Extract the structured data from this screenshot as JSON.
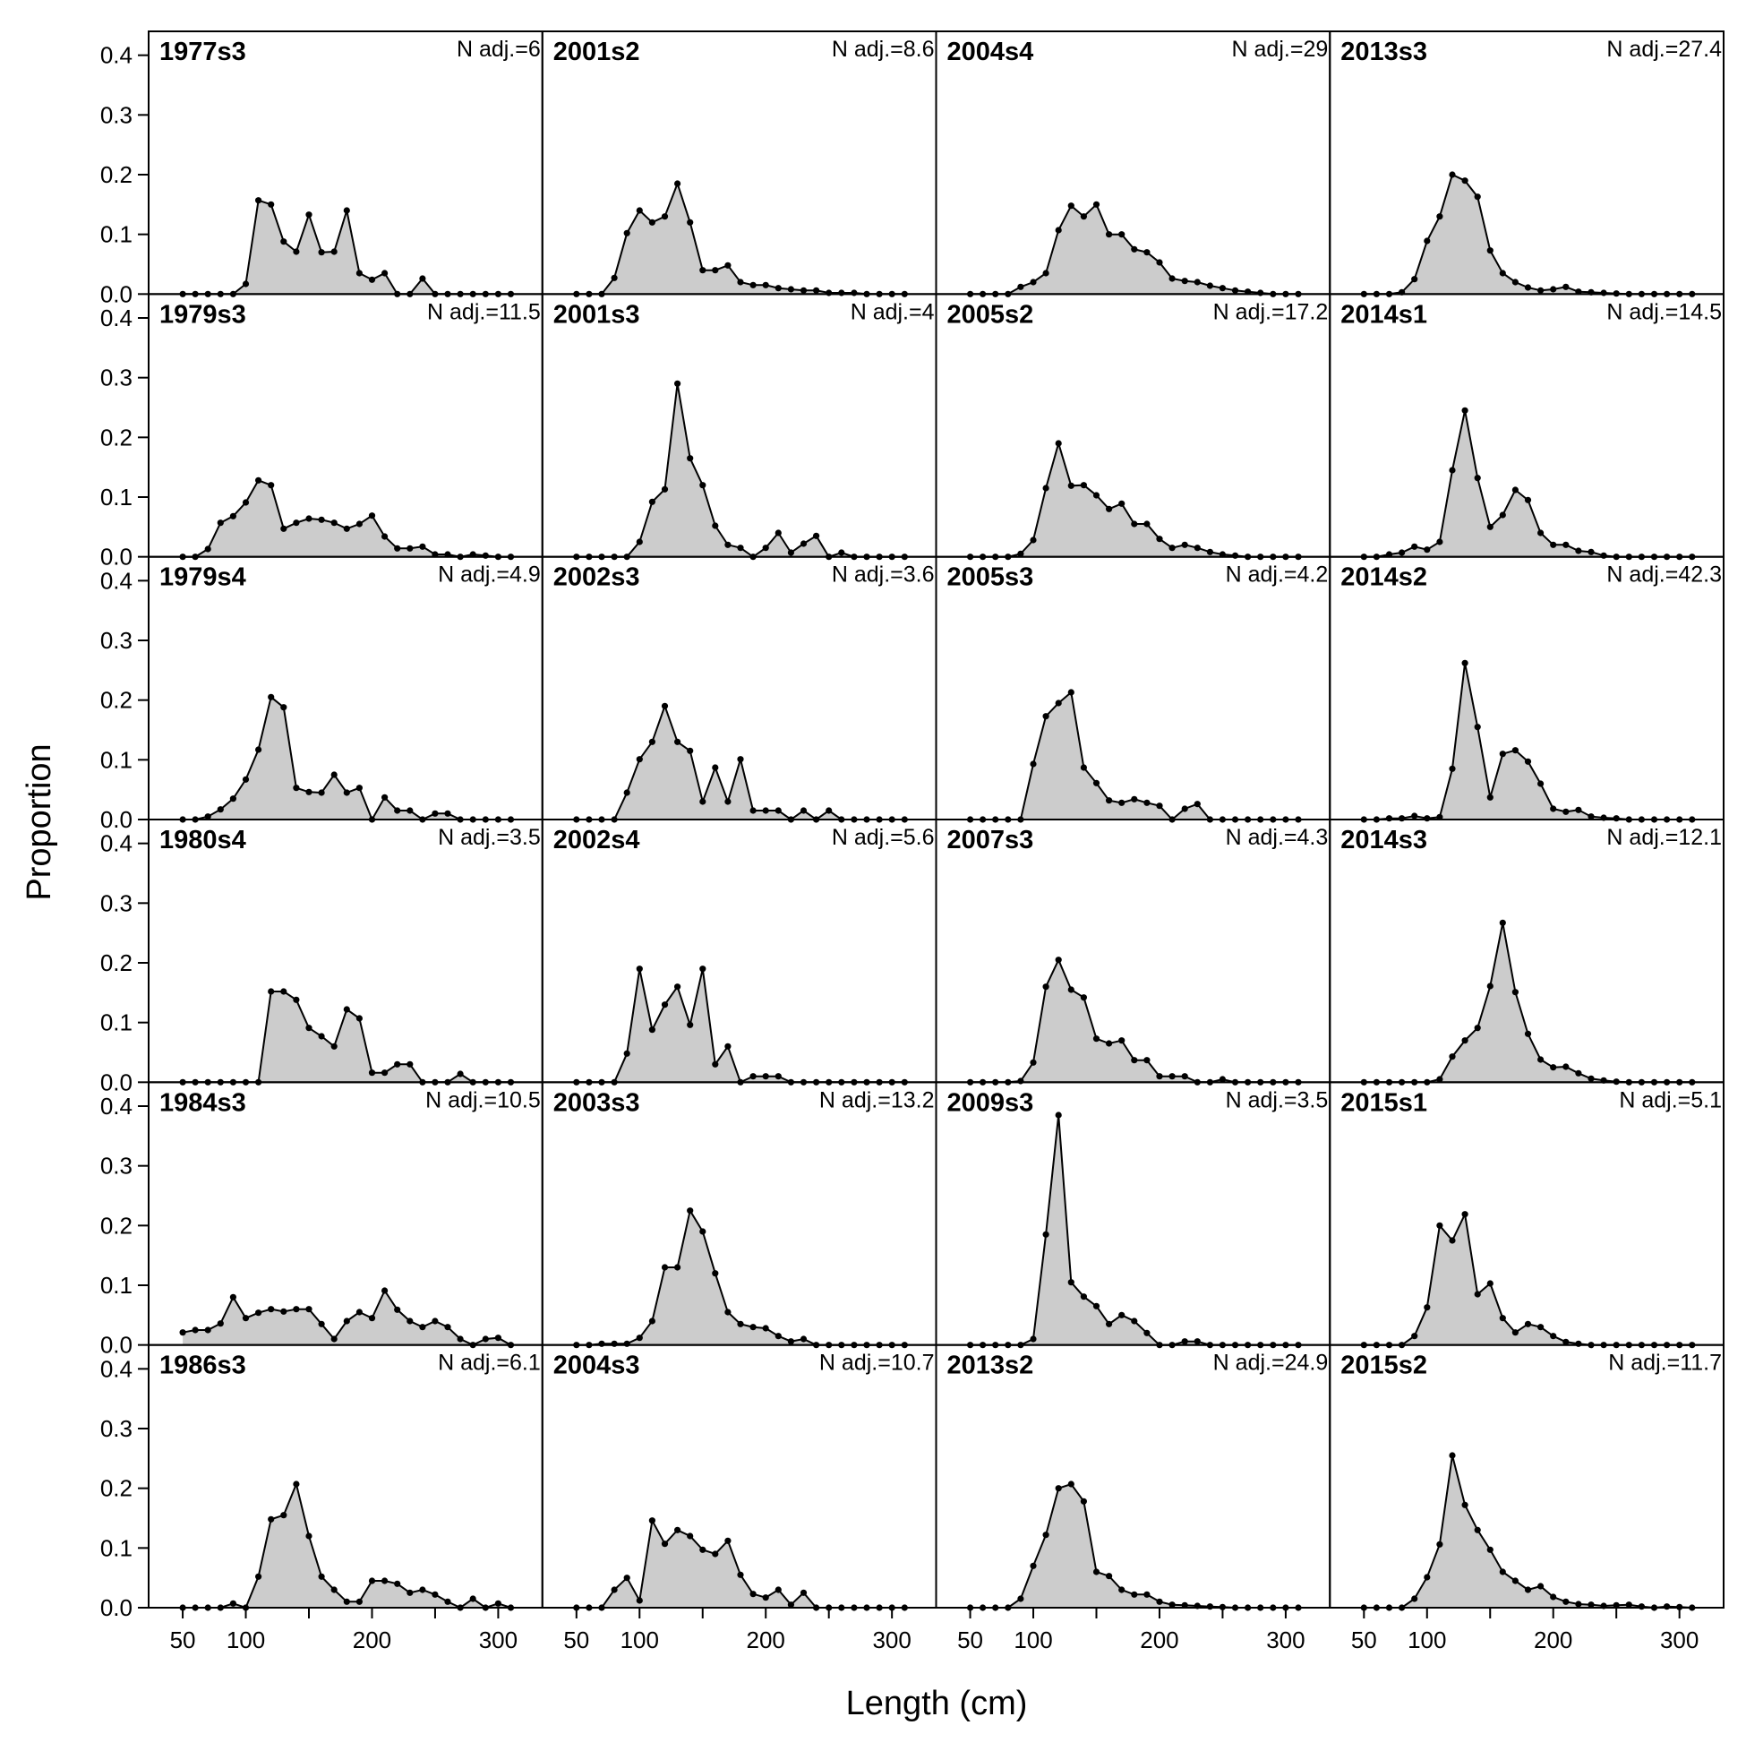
{
  "figure": {
    "ylabel": "Proportion",
    "xlabel": "Length (cm)"
  },
  "chart_data": {
    "type": "area",
    "layout": {
      "columns": 4,
      "rows": 6,
      "order": "column-major"
    },
    "x_axis": {
      "label": "Length (cm)",
      "lim": [
        23,
        335
      ],
      "ticks": [
        50,
        100,
        150,
        200,
        250,
        300
      ],
      "tick_labels": [
        "50",
        "100",
        "",
        "200",
        "",
        "300"
      ]
    },
    "y_axis": {
      "label": "Proportion",
      "lim": [
        0,
        0.44
      ],
      "ticks": [
        0.0,
        0.1,
        0.2,
        0.3,
        0.4
      ],
      "tick_labels": [
        "0.0",
        "0.1",
        "0.2",
        "0.3",
        "0.4"
      ]
    },
    "x": [
      50,
      60,
      70,
      80,
      90,
      100,
      110,
      120,
      130,
      140,
      150,
      160,
      170,
      180,
      190,
      200,
      210,
      220,
      230,
      240,
      250,
      260,
      270,
      280,
      290,
      300,
      310
    ],
    "fill_color": "#cccccc",
    "line_color": "#000000",
    "panels": [
      {
        "label": "1977s3",
        "nadj": "N adj.=6",
        "values": [
          0,
          0,
          0,
          0,
          0,
          0.017,
          0.157,
          0.15,
          0.088,
          0.071,
          0.133,
          0.07,
          0.071,
          0.14,
          0.035,
          0.024,
          0.035,
          0,
          0,
          0.026,
          0,
          0,
          0,
          0,
          0,
          0,
          0
        ]
      },
      {
        "label": "1979s3",
        "nadj": "N adj.=11.5",
        "values": [
          0,
          0,
          0.013,
          0.057,
          0.068,
          0.091,
          0.128,
          0.12,
          0.047,
          0.057,
          0.064,
          0.062,
          0.057,
          0.047,
          0.055,
          0.069,
          0.034,
          0.014,
          0.014,
          0.017,
          0.004,
          0.004,
          0,
          0.004,
          0.002,
          0,
          0
        ]
      },
      {
        "label": "1979s4",
        "nadj": "N adj.=4.9",
        "values": [
          0,
          0,
          0.005,
          0.017,
          0.035,
          0.067,
          0.117,
          0.205,
          0.188,
          0.053,
          0.046,
          0.045,
          0.075,
          0.045,
          0.053,
          0,
          0.037,
          0.015,
          0.015,
          0,
          0.01,
          0.01,
          0,
          0,
          0,
          0,
          0
        ]
      },
      {
        "label": "1980s4",
        "nadj": "N adj.=3.5",
        "values": [
          0,
          0,
          0,
          0,
          0,
          0,
          0,
          0.152,
          0.152,
          0.138,
          0.091,
          0.077,
          0.06,
          0.122,
          0.107,
          0.016,
          0.016,
          0.03,
          0.03,
          0,
          0,
          0,
          0.014,
          0,
          0,
          0,
          0
        ]
      },
      {
        "label": "1984s3",
        "nadj": "N adj.=10.5",
        "values": [
          0.021,
          0.025,
          0.025,
          0.036,
          0.08,
          0.045,
          0.054,
          0.06,
          0.056,
          0.06,
          0.06,
          0.035,
          0.01,
          0.04,
          0.055,
          0.045,
          0.091,
          0.059,
          0.04,
          0.03,
          0.04,
          0.03,
          0.01,
          0,
          0.01,
          0.012,
          0
        ]
      },
      {
        "label": "1986s3",
        "nadj": "N adj.=6.1",
        "values": [
          0,
          0,
          0,
          0,
          0.007,
          0,
          0.052,
          0.148,
          0.155,
          0.207,
          0.12,
          0.052,
          0.03,
          0.01,
          0.01,
          0.045,
          0.045,
          0.04,
          0.025,
          0.03,
          0.022,
          0.01,
          0,
          0.015,
          0,
          0.007,
          0
        ]
      },
      {
        "label": "2001s2",
        "nadj": "N adj.=8.6",
        "values": [
          0,
          0,
          0,
          0.027,
          0.102,
          0.14,
          0.12,
          0.13,
          0.185,
          0.12,
          0.04,
          0.04,
          0.048,
          0.02,
          0.015,
          0.015,
          0.01,
          0.008,
          0.006,
          0.006,
          0.002,
          0.002,
          0.002,
          0,
          0,
          0,
          0
        ]
      },
      {
        "label": "2001s3",
        "nadj": "N adj.=4",
        "values": [
          0,
          0,
          0,
          0,
          0,
          0.025,
          0.092,
          0.113,
          0.29,
          0.165,
          0.12,
          0.052,
          0.02,
          0.015,
          0,
          0.015,
          0.04,
          0.007,
          0.022,
          0.035,
          0,
          0.007,
          0,
          0,
          0,
          0,
          0
        ]
      },
      {
        "label": "2002s3",
        "nadj": "N adj.=3.6",
        "values": [
          0,
          0,
          0,
          0,
          0.045,
          0.101,
          0.13,
          0.19,
          0.13,
          0.115,
          0.03,
          0.087,
          0.03,
          0.101,
          0.015,
          0.015,
          0.015,
          0,
          0.015,
          0,
          0.015,
          0,
          0,
          0,
          0,
          0,
          0
        ]
      },
      {
        "label": "2002s4",
        "nadj": "N adj.=5.6",
        "values": [
          0,
          0,
          0,
          0,
          0.048,
          0.19,
          0.088,
          0.13,
          0.16,
          0.096,
          0.19,
          0.03,
          0.06,
          0,
          0.01,
          0.01,
          0.01,
          0,
          0,
          0,
          0,
          0,
          0,
          0,
          0,
          0,
          0
        ]
      },
      {
        "label": "2003s3",
        "nadj": "N adj.=13.2",
        "values": [
          0,
          0,
          0.002,
          0.002,
          0.002,
          0.012,
          0.04,
          0.13,
          0.13,
          0.225,
          0.19,
          0.12,
          0.055,
          0.035,
          0.03,
          0.028,
          0.015,
          0.006,
          0.01,
          0,
          0,
          0,
          0,
          0,
          0,
          0,
          0
        ]
      },
      {
        "label": "2004s3",
        "nadj": "N adj.=10.7",
        "values": [
          0,
          0,
          0,
          0.03,
          0.05,
          0.012,
          0.146,
          0.107,
          0.13,
          0.12,
          0.097,
          0.09,
          0.112,
          0.055,
          0.023,
          0.017,
          0.03,
          0.005,
          0.025,
          0,
          0,
          0,
          0,
          0,
          0,
          0,
          0
        ]
      },
      {
        "label": "2004s4",
        "nadj": "N adj.=29",
        "values": [
          0,
          0,
          0,
          0,
          0.012,
          0.02,
          0.035,
          0.107,
          0.148,
          0.13,
          0.15,
          0.1,
          0.1,
          0.075,
          0.07,
          0.053,
          0.026,
          0.022,
          0.02,
          0.014,
          0.01,
          0.006,
          0.004,
          0.002,
          0,
          0,
          0
        ]
      },
      {
        "label": "2005s2",
        "nadj": "N adj.=17.2",
        "values": [
          0,
          0,
          0,
          0,
          0.005,
          0.028,
          0.115,
          0.19,
          0.119,
          0.12,
          0.103,
          0.08,
          0.089,
          0.055,
          0.055,
          0.03,
          0.015,
          0.02,
          0.015,
          0.008,
          0.004,
          0.002,
          0,
          0,
          0,
          0,
          0
        ]
      },
      {
        "label": "2005s3",
        "nadj": "N adj.=4.2",
        "values": [
          0,
          0,
          0,
          0,
          0,
          0.093,
          0.173,
          0.195,
          0.213,
          0.087,
          0.061,
          0.032,
          0.028,
          0.034,
          0.028,
          0.023,
          0,
          0.018,
          0.026,
          0,
          0,
          0,
          0,
          0,
          0,
          0,
          0
        ]
      },
      {
        "label": "2007s3",
        "nadj": "N adj.=4.3",
        "values": [
          0,
          0,
          0,
          0,
          0.002,
          0.033,
          0.16,
          0.205,
          0.155,
          0.142,
          0.073,
          0.065,
          0.07,
          0.037,
          0.037,
          0.01,
          0.01,
          0.01,
          0,
          0,
          0.005,
          0,
          0,
          0,
          0,
          0,
          0
        ]
      },
      {
        "label": "2009s3",
        "nadj": "N adj.=3.5",
        "values": [
          0,
          0,
          0,
          0,
          0,
          0.01,
          0.185,
          0.385,
          0.105,
          0.081,
          0.065,
          0.035,
          0.05,
          0.04,
          0.02,
          0,
          0,
          0.006,
          0.006,
          0,
          0,
          0,
          0,
          0,
          0,
          0,
          0
        ]
      },
      {
        "label": "2013s2",
        "nadj": "N adj.=24.9",
        "values": [
          0,
          0,
          0,
          0,
          0.015,
          0.07,
          0.122,
          0.2,
          0.207,
          0.178,
          0.06,
          0.053,
          0.03,
          0.022,
          0.022,
          0.01,
          0.005,
          0.004,
          0.003,
          0.002,
          0.001,
          0,
          0,
          0,
          0,
          0,
          0
        ]
      },
      {
        "label": "2013s3",
        "nadj": "N adj.=27.4",
        "values": [
          0,
          0,
          0,
          0.003,
          0.025,
          0.089,
          0.13,
          0.2,
          0.19,
          0.163,
          0.073,
          0.035,
          0.02,
          0.011,
          0.006,
          0.008,
          0.012,
          0.004,
          0.003,
          0.002,
          0.001,
          0,
          0,
          0,
          0,
          0,
          0
        ]
      },
      {
        "label": "2014s1",
        "nadj": "N adj.=14.5",
        "values": [
          0,
          0,
          0.004,
          0.007,
          0.017,
          0.012,
          0.025,
          0.145,
          0.245,
          0.132,
          0.05,
          0.07,
          0.112,
          0.095,
          0.04,
          0.02,
          0.02,
          0.01,
          0.008,
          0.002,
          0,
          0,
          0,
          0,
          0,
          0,
          0
        ]
      },
      {
        "label": "2014s2",
        "nadj": "N adj.=42.3",
        "values": [
          0,
          0,
          0.002,
          0.002,
          0.006,
          0.002,
          0.004,
          0.085,
          0.262,
          0.155,
          0.037,
          0.11,
          0.116,
          0.097,
          0.06,
          0.018,
          0.013,
          0.016,
          0.005,
          0.003,
          0.002,
          0,
          0,
          0,
          0,
          0,
          0
        ]
      },
      {
        "label": "2014s3",
        "nadj": "N adj.=12.1",
        "values": [
          0,
          0,
          0,
          0,
          0,
          0,
          0.005,
          0.043,
          0.07,
          0.091,
          0.161,
          0.267,
          0.151,
          0.081,
          0.038,
          0.025,
          0.026,
          0.015,
          0.006,
          0.003,
          0.001,
          0,
          0,
          0,
          0,
          0,
          0
        ]
      },
      {
        "label": "2015s1",
        "nadj": "N adj.=5.1",
        "values": [
          0,
          0,
          0,
          0,
          0.015,
          0.063,
          0.2,
          0.175,
          0.219,
          0.085,
          0.103,
          0.045,
          0.021,
          0.035,
          0.03,
          0.015,
          0.005,
          0.002,
          0,
          0,
          0,
          0,
          0,
          0,
          0,
          0,
          0
        ]
      },
      {
        "label": "2015s2",
        "nadj": "N adj.=11.7",
        "values": [
          0,
          0,
          0,
          0,
          0.015,
          0.051,
          0.106,
          0.255,
          0.172,
          0.13,
          0.097,
          0.06,
          0.045,
          0.03,
          0.036,
          0.018,
          0.01,
          0.006,
          0.005,
          0.003,
          0.004,
          0.005,
          0.002,
          0,
          0.002,
          0.001,
          0
        ]
      }
    ]
  }
}
